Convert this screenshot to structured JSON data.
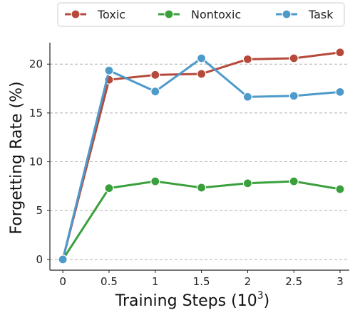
{
  "chart_data": {
    "type": "line",
    "x": [
      0,
      0.5,
      1,
      1.5,
      2,
      2.5,
      3
    ],
    "x_tick_labels": [
      "0",
      "0.5",
      "1",
      "1.5",
      "2",
      "2.5",
      "3"
    ],
    "y_ticks": [
      0,
      5,
      10,
      15,
      20
    ],
    "y_tick_labels": [
      "0",
      "5",
      "10",
      "15",
      "20"
    ],
    "xlim": [
      -0.14,
      3.1
    ],
    "ylim": [
      -1.1,
      22.2
    ],
    "xlabel": "Training Steps (10",
    "xlabel_sup": "3",
    "xlabel_close": ")",
    "ylabel": "Forgetting Rate (%)",
    "grid": "horizontal dashed",
    "legend_position": "top",
    "series": [
      {
        "name": "Toxic",
        "color": "#b5493a",
        "values": [
          0,
          18.4,
          18.9,
          19.0,
          20.5,
          20.6,
          21.2
        ]
      },
      {
        "name": "Nontoxic",
        "color": "#3aa03c",
        "values": [
          0,
          7.3,
          8.0,
          7.35,
          7.8,
          8.0,
          7.2
        ]
      },
      {
        "name": "Task",
        "color": "#4d9acb",
        "values": [
          0,
          19.35,
          17.2,
          20.6,
          16.65,
          16.75,
          17.15
        ]
      }
    ]
  }
}
